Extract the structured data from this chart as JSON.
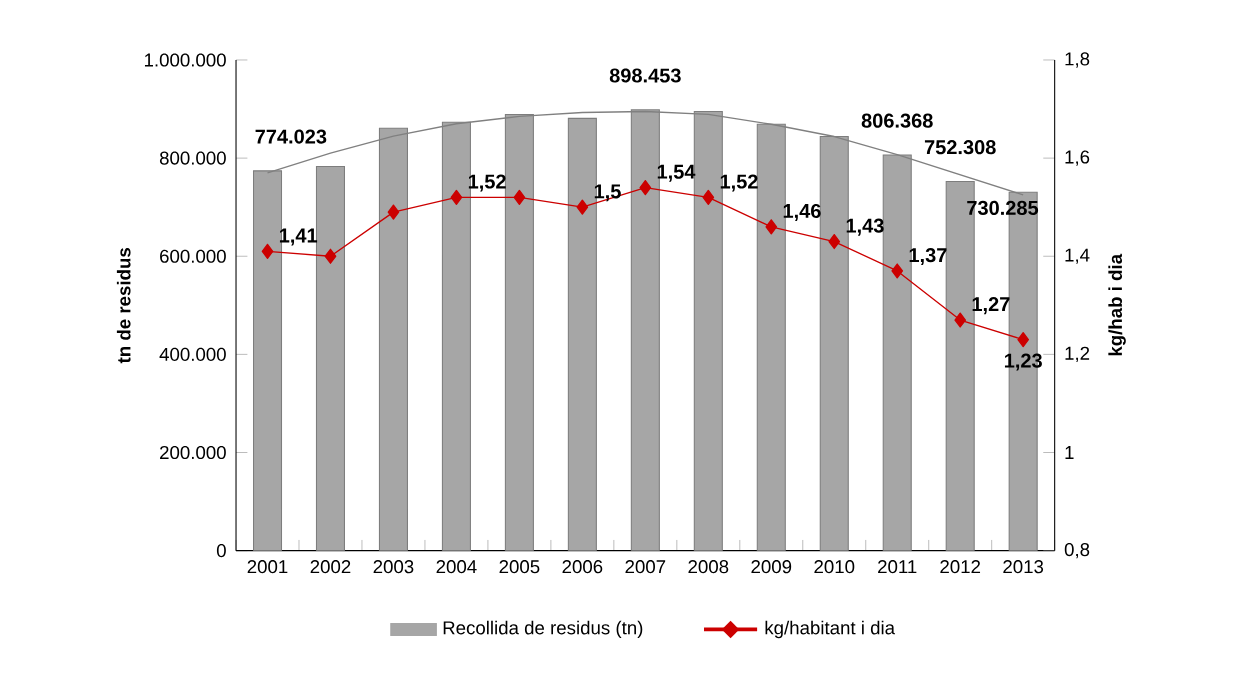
{
  "chart_data": {
    "type": "bar",
    "categories": [
      "2001",
      "2002",
      "2003",
      "2004",
      "2005",
      "2006",
      "2007",
      "2008",
      "2009",
      "2010",
      "2011",
      "2012",
      "2013"
    ],
    "series": [
      {
        "type": "bar",
        "name": "Recollida de residus (tn)",
        "color": "#a6a6a6",
        "values": [
          774023,
          783000,
          861000,
          873000,
          889000,
          881000,
          898453,
          895000,
          869000,
          844000,
          806368,
          752308,
          730285
        ],
        "value_labels": [
          "774.023",
          null,
          null,
          null,
          null,
          null,
          "898.453",
          null,
          null,
          null,
          "806.368",
          "752.308",
          "730.285"
        ]
      },
      {
        "type": "line",
        "color": "#808080",
        "values": [
          770000,
          810000,
          845000,
          870000,
          885000,
          893000,
          895000,
          889000,
          869000,
          844000,
          807000,
          766000,
          725000
        ]
      },
      {
        "type": "line",
        "axis": "y2",
        "name": "kg/habitant i dia",
        "color": "#cc0000",
        "marker": "diamond",
        "values": [
          1.41,
          1.4,
          1.49,
          1.52,
          1.52,
          1.5,
          1.54,
          1.52,
          1.46,
          1.43,
          1.37,
          1.27,
          1.23
        ],
        "value_labels": [
          "1,41",
          null,
          null,
          "1,52",
          null,
          "1,5",
          "1,54",
          "1,52",
          "1,46",
          "1,43",
          "1,37",
          "1,27",
          "1,23"
        ]
      }
    ],
    "ylabel": "tn de residus",
    "y2label": "kg/hab i dia",
    "ylim": [
      0,
      1000000
    ],
    "yticks": [
      0,
      {
        "value": 200000,
        "label": "200.000"
      },
      {
        "value": 400000,
        "label": "400.000"
      },
      {
        "value": 600000,
        "label": "600.000"
      },
      {
        "value": 800000,
        "label": "800.000"
      },
      {
        "value": 1000000,
        "label": "1.000.000"
      }
    ],
    "y2lim": [
      0.8,
      1.8
    ],
    "y2ticks": [
      {
        "value": 0.8,
        "label": "0,8"
      },
      1,
      {
        "value": 1.2,
        "label": "1,2"
      },
      {
        "value": 1.4,
        "label": "1,4"
      },
      {
        "value": 1.6,
        "label": "1,6"
      },
      {
        "value": 1.8,
        "label": "1,8"
      }
    ],
    "legend": "bottom",
    "grid": false
  }
}
